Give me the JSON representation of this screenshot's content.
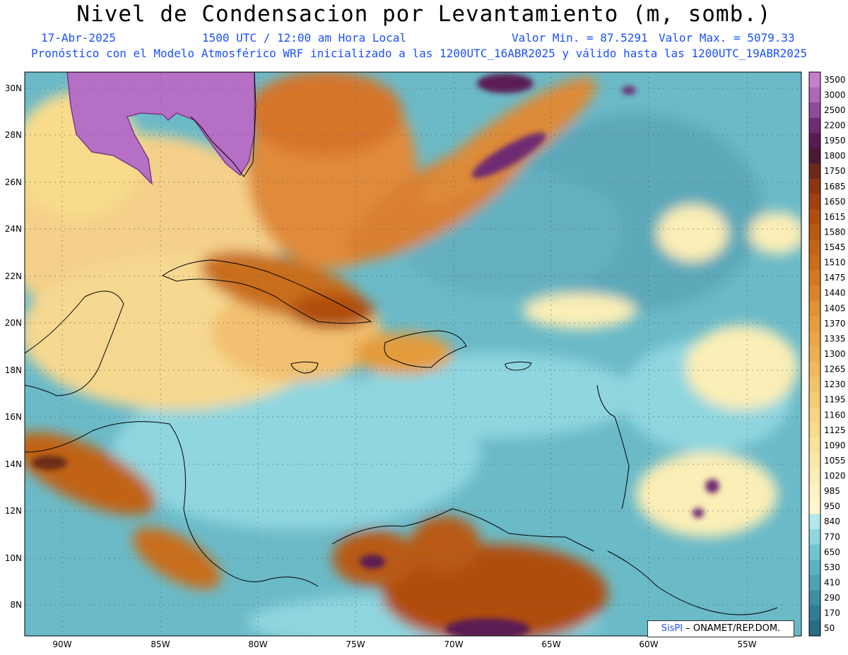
{
  "header": {
    "title": "Nivel de Condensacion por Levantamiento (m, somb.)",
    "date": "17-Abr-2025",
    "time": "1500 UTC / 12:00 am Hora Local",
    "valmin": "Valor Min. = 87.5291",
    "valmax": "Valor Max. = 5079.33",
    "subtitle": "Pronóstico con el Modelo Atmosférico WRF inicializado a las 1200UTC_16ABR2025 y válido hasta las  1200UTC_19ABR2025"
  },
  "axes": {
    "lat_labels": [
      "30N",
      "28N",
      "26N",
      "24N",
      "22N",
      "20N",
      "18N",
      "16N",
      "14N",
      "12N",
      "10N",
      "8N"
    ],
    "lon_labels": [
      "90W",
      "85W",
      "80W",
      "75W",
      "70W",
      "65W",
      "60W",
      "55W"
    ]
  },
  "colorbar": {
    "levels": [
      "3500",
      "3000",
      "2500",
      "2200",
      "1950",
      "1800",
      "1750",
      "1685",
      "1650",
      "1615",
      "1580",
      "1545",
      "1510",
      "1475",
      "1440",
      "1405",
      "1370",
      "1335",
      "1300",
      "1265",
      "1230",
      "1195",
      "1160",
      "1125",
      "1090",
      "1055",
      "1020",
      "985",
      "950",
      "840",
      "770",
      "650",
      "530",
      "410",
      "290",
      "170",
      "50"
    ],
    "colors": [
      "#c77fcc",
      "#b066b8",
      "#8e4b99",
      "#6e2c73",
      "#5a1a52",
      "#4a1a33",
      "#6b2a18",
      "#8a3512",
      "#a0420f",
      "#b04e10",
      "#b85a14",
      "#c06418",
      "#c86e1c",
      "#d07822",
      "#d8842a",
      "#df9234",
      "#e49c3c",
      "#e8a646",
      "#ecb050",
      "#efba5c",
      "#f2c468",
      "#f4cc74",
      "#f6d480",
      "#f8dc8c",
      "#f9e29a",
      "#fae8a8",
      "#fbeeb6",
      "#fcf2c2",
      "#fdf6cf",
      "#b3e8ec",
      "#8fd6df",
      "#72c4d1",
      "#5db2c2",
      "#4ea0b2",
      "#3f8ea2",
      "#317c92",
      "#266c82"
    ]
  },
  "credit": {
    "brand": "SisPI",
    "text": "– ONAMET/REP.DOM."
  }
}
